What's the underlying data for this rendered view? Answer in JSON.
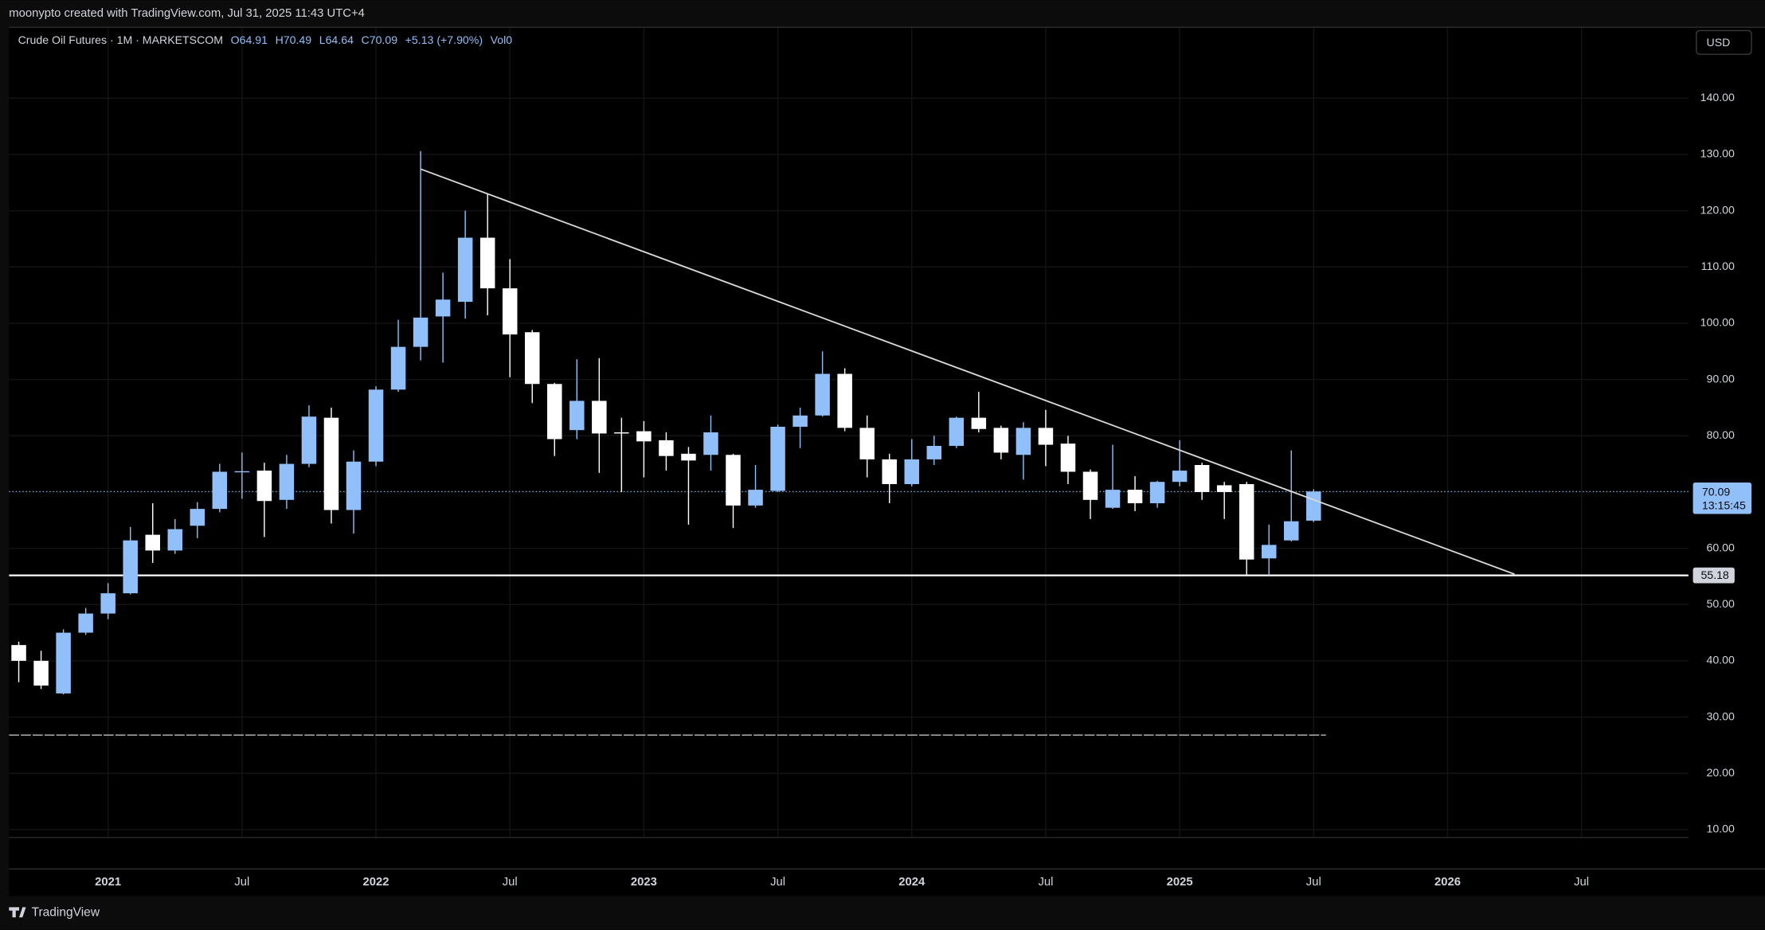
{
  "header": {
    "title": "moonypto created with TradingView.com, Jul 31, 2025 11:43 UTC+4"
  },
  "legend": {
    "symbol": "Crude Oil Futures · 1M · MARKETSCOM",
    "open": "O64.91",
    "high": "H70.49",
    "low": "L64.64",
    "close": "C70.09",
    "change": "+5.13 (+7.90%)",
    "volume": "Vol0"
  },
  "currency_button": "USD",
  "footer": {
    "brand": "TradingView"
  },
  "chart_data": {
    "type": "candlestick",
    "x": [
      "2020-09",
      "2020-10",
      "2020-11",
      "2020-12",
      "2021-01",
      "2021-02",
      "2021-03",
      "2021-04",
      "2021-05",
      "2021-06",
      "2021-07",
      "2021-08",
      "2021-09",
      "2021-10",
      "2021-11",
      "2021-12",
      "2022-01",
      "2022-02",
      "2022-03",
      "2022-04",
      "2022-05",
      "2022-06",
      "2022-07",
      "2022-08",
      "2022-09",
      "2022-10",
      "2022-11",
      "2022-12",
      "2023-01",
      "2023-02",
      "2023-03",
      "2023-04",
      "2023-05",
      "2023-06",
      "2023-07",
      "2023-08",
      "2023-09",
      "2023-10",
      "2023-11",
      "2023-12",
      "2024-01",
      "2024-02",
      "2024-03",
      "2024-04",
      "2024-05",
      "2024-06",
      "2024-07",
      "2024-08",
      "2024-09",
      "2024-10",
      "2024-11",
      "2024-12",
      "2025-01",
      "2025-02",
      "2025-03",
      "2025-04",
      "2025-05",
      "2025-06",
      "2025-07"
    ],
    "open": [
      42.8,
      40.0,
      34.2,
      45.0,
      48.4,
      52.0,
      62.4,
      59.6,
      64.0,
      67.0,
      73.5,
      73.8,
      68.6,
      75.0,
      83.2,
      66.8,
      75.4,
      88.2,
      95.8,
      101.2,
      103.8,
      115.2,
      106.2,
      98.4,
      89.2,
      81.0,
      86.2,
      80.6,
      80.8,
      79.2,
      76.8,
      76.6,
      76.6,
      67.6,
      70.2,
      81.6,
      83.6,
      91.0,
      81.4,
      75.8,
      71.4,
      75.8,
      78.2,
      83.2,
      81.4,
      76.6,
      81.4,
      78.6,
      73.6,
      67.2,
      70.4,
      68.0,
      71.8,
      74.8,
      71.2,
      71.4,
      58.2,
      61.4,
      64.91
    ],
    "high": [
      43.4,
      41.8,
      45.6,
      49.4,
      53.8,
      63.8,
      68.0,
      65.2,
      68.2,
      75.0,
      77.0,
      75.2,
      76.6,
      85.4,
      85.0,
      77.4,
      88.8,
      100.6,
      130.6,
      109.0,
      120.0,
      123.0,
      111.4,
      98.8,
      89.4,
      93.6,
      93.8,
      83.2,
      82.6,
      80.6,
      78.0,
      83.6,
      76.8,
      74.8,
      82.0,
      85.0,
      95.0,
      92.0,
      83.6,
      76.8,
      79.4,
      80.0,
      83.4,
      87.8,
      81.8,
      82.4,
      84.6,
      80.0,
      74.0,
      78.4,
      72.8,
      72.0,
      79.2,
      75.2,
      71.8,
      71.8,
      64.2,
      77.4,
      70.49
    ],
    "low": [
      36.2,
      35.0,
      34.0,
      44.6,
      47.4,
      51.8,
      57.4,
      59.0,
      61.8,
      66.4,
      68.8,
      62.0,
      67.0,
      74.4,
      64.4,
      62.6,
      74.6,
      87.8,
      93.4,
      93.0,
      100.8,
      101.4,
      90.4,
      85.8,
      76.4,
      79.4,
      73.4,
      70.0,
      72.6,
      73.8,
      64.2,
      73.8,
      63.6,
      67.2,
      70.0,
      77.8,
      83.4,
      80.8,
      72.6,
      68.0,
      71.0,
      74.8,
      77.8,
      80.6,
      75.8,
      72.2,
      74.6,
      71.4,
      65.2,
      67.0,
      66.6,
      67.2,
      71.0,
      68.6,
      65.2,
      55.2,
      55.2,
      61.2,
      64.64
    ],
    "close": [
      40.0,
      35.6,
      45.0,
      48.4,
      52.0,
      61.4,
      59.6,
      63.4,
      67.0,
      73.6,
      73.7,
      68.4,
      75.0,
      83.4,
      66.8,
      75.4,
      88.2,
      95.8,
      101.0,
      104.2,
      115.2,
      106.2,
      98.0,
      89.2,
      79.4,
      86.2,
      80.4,
      80.4,
      79.0,
      76.4,
      75.6,
      80.6,
      67.6,
      70.4,
      81.6,
      83.6,
      91.0,
      81.4,
      75.8,
      71.4,
      75.8,
      78.2,
      83.2,
      81.2,
      77.0,
      81.4,
      78.4,
      73.6,
      68.6,
      70.4,
      68.0,
      71.8,
      73.8,
      70.0,
      70.0,
      58.0,
      60.6,
      64.8,
      70.09
    ],
    "up_color": "#90bff9",
    "down_color": "#ffffff",
    "xlim": [
      "2020-08",
      "2026-12"
    ],
    "xticks": [
      {
        "value": "2021-01",
        "label": "2021"
      },
      {
        "value": "2021-07",
        "label": "Jul"
      },
      {
        "value": "2022-01",
        "label": "2022"
      },
      {
        "value": "2022-07",
        "label": "Jul"
      },
      {
        "value": "2023-01",
        "label": "2023"
      },
      {
        "value": "2023-07",
        "label": "Jul"
      },
      {
        "value": "2024-01",
        "label": "2024"
      },
      {
        "value": "2024-07",
        "label": "Jul"
      },
      {
        "value": "2025-01",
        "label": "2025"
      },
      {
        "value": "2025-07",
        "label": "Jul"
      },
      {
        "value": "2026-01",
        "label": "2026"
      },
      {
        "value": "2026-07",
        "label": "Jul"
      }
    ],
    "ylim": [
      8.6,
      152.6
    ],
    "yticks": [
      {
        "value": 10,
        "label": "10.00"
      },
      {
        "value": 20,
        "label": "20.00"
      },
      {
        "value": 30,
        "label": "30.00"
      },
      {
        "value": 40,
        "label": "40.00"
      },
      {
        "value": 50,
        "label": "50.00"
      },
      {
        "value": 60,
        "label": "60.00"
      },
      {
        "value": 70,
        "label": "70.00"
      },
      {
        "value": 80,
        "label": "80.00"
      },
      {
        "value": 90,
        "label": "90.00"
      },
      {
        "value": 100,
        "label": "100.00"
      },
      {
        "value": 110,
        "label": "110.00"
      },
      {
        "value": 120,
        "label": "120.00"
      },
      {
        "value": 130,
        "label": "130.00"
      },
      {
        "value": 140,
        "label": "140.00"
      }
    ],
    "grid": true,
    "last_price": {
      "value": 70.09,
      "countdown": "13:15:45"
    },
    "horizontal_line": {
      "value": 55.18
    },
    "trendline": {
      "x": [
        "2022-03",
        "2026-04"
      ],
      "values": [
        127.4,
        55.4
      ]
    },
    "dashed_level": {
      "value": 26.8,
      "x_end": "2025-07"
    }
  }
}
